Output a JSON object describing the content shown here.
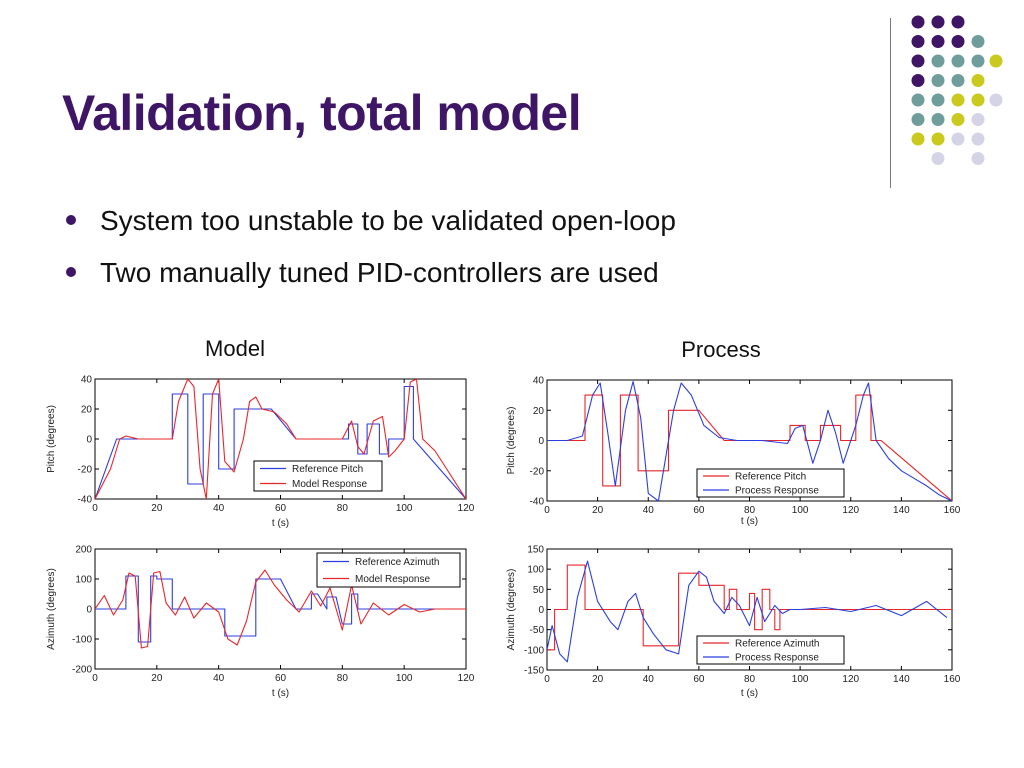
{
  "slide": {
    "title": "Validation, total model",
    "bullets": [
      "System too unstable to be validated open-loop",
      "Two manually tuned PID-controllers are used"
    ],
    "decoration_colors": [
      "#3f1566",
      "#6f9d9c",
      "#c9c91e",
      "#d4d4e6"
    ]
  },
  "panels": {
    "model_heading": "Model",
    "process_heading": "Process"
  },
  "chart_data": [
    {
      "type": "line",
      "panel": "Model",
      "xlabel": "t (s)",
      "ylabel": "Pitch (degrees)",
      "xlim": [
        0,
        120
      ],
      "ylim": [
        -40,
        40
      ],
      "xticks": [
        0,
        20,
        40,
        60,
        80,
        100,
        120
      ],
      "yticks": [
        -40,
        -20,
        0,
        20,
        40
      ],
      "legend_position": "lower-right",
      "series": [
        {
          "name": "Reference Pitch",
          "color": "#2b3fe0",
          "x": [
            0,
            7,
            25,
            25,
            30,
            30,
            35,
            35,
            40,
            40,
            45,
            45,
            50,
            50,
            57,
            65,
            82,
            82,
            85,
            85,
            88,
            88,
            92,
            92,
            95,
            95,
            100,
            100,
            103,
            103,
            120
          ],
          "y": [
            -40,
            0,
            0,
            30,
            30,
            -30,
            -30,
            30,
            30,
            -20,
            -20,
            20,
            20,
            20,
            20,
            0,
            0,
            10,
            10,
            -10,
            -10,
            10,
            10,
            -10,
            -10,
            0,
            0,
            35,
            35,
            0,
            -40
          ]
        },
        {
          "name": "Model Response",
          "color": "#e8262a",
          "x": [
            0,
            5,
            8,
            10,
            14,
            20,
            25,
            27,
            30,
            32,
            34,
            36,
            38,
            40,
            42,
            45,
            48,
            50,
            52,
            54,
            58,
            62,
            65,
            70,
            80,
            83,
            85,
            87,
            90,
            93,
            95,
            97,
            100,
            102,
            104,
            106,
            110,
            120
          ],
          "y": [
            -40,
            -20,
            0,
            2,
            0,
            0,
            0,
            25,
            40,
            35,
            -20,
            -40,
            30,
            40,
            -15,
            -22,
            0,
            25,
            28,
            20,
            18,
            10,
            0,
            0,
            0,
            12,
            -5,
            -10,
            12,
            15,
            -12,
            -8,
            0,
            38,
            40,
            0,
            -8,
            -40
          ]
        }
      ]
    },
    {
      "type": "line",
      "panel": "Model",
      "xlabel": "t (s)",
      "ylabel": "Azimuth (degrees)",
      "xlim": [
        0,
        120
      ],
      "ylim": [
        -200,
        200
      ],
      "xticks": [
        0,
        20,
        40,
        60,
        80,
        100,
        120
      ],
      "yticks": [
        -200,
        -100,
        0,
        100,
        200
      ],
      "legend_position": "upper-right",
      "series": [
        {
          "name": "Reference Azimuth",
          "color": "#2b3fe0",
          "x": [
            0,
            10,
            10,
            14,
            14,
            18,
            18,
            20,
            20,
            25,
            25,
            42,
            42,
            52,
            52,
            58,
            58,
            60,
            65,
            70,
            70,
            72,
            75,
            75,
            78,
            80,
            83,
            83,
            85,
            85,
            120
          ],
          "y": [
            0,
            0,
            110,
            110,
            -110,
            -110,
            110,
            110,
            100,
            100,
            0,
            0,
            -90,
            -90,
            100,
            100,
            100,
            100,
            0,
            0,
            50,
            50,
            0,
            40,
            40,
            -50,
            -50,
            50,
            50,
            0,
            0
          ]
        },
        {
          "name": "Model Response",
          "color": "#e8262a",
          "x": [
            0,
            3,
            6,
            9,
            11,
            13,
            15,
            17,
            19,
            21,
            23,
            26,
            29,
            32,
            36,
            40,
            43,
            46,
            49,
            52,
            55,
            58,
            62,
            66,
            70,
            73,
            76,
            80,
            83,
            86,
            90,
            95,
            100,
            105,
            110,
            120
          ],
          "y": [
            0,
            45,
            -20,
            30,
            120,
            110,
            -130,
            -125,
            120,
            125,
            20,
            -20,
            40,
            -30,
            20,
            -10,
            -100,
            -120,
            -40,
            90,
            130,
            80,
            30,
            -10,
            60,
            10,
            70,
            -70,
            80,
            -50,
            20,
            -20,
            15,
            -10,
            0,
            0
          ]
        }
      ]
    },
    {
      "type": "line",
      "panel": "Process",
      "xlabel": "t (s)",
      "ylabel": "Pitch (degrees)",
      "xlim": [
        0,
        160
      ],
      "ylim": [
        -40,
        40
      ],
      "xticks": [
        0,
        20,
        40,
        60,
        80,
        100,
        120,
        140,
        160
      ],
      "yticks": [
        -40,
        -20,
        0,
        20,
        40
      ],
      "legend_position": "lower-right",
      "series": [
        {
          "name": "Reference Pitch",
          "color": "#e8262a",
          "x": [
            0,
            15,
            15,
            22,
            22,
            29,
            29,
            36,
            36,
            48,
            48,
            60,
            70,
            96,
            96,
            102,
            102,
            108,
            108,
            116,
            116,
            122,
            122,
            128,
            128,
            132,
            160
          ],
          "y": [
            0,
            0,
            30,
            30,
            -30,
            -30,
            30,
            30,
            -20,
            -20,
            20,
            20,
            0,
            0,
            10,
            10,
            0,
            0,
            10,
            10,
            0,
            0,
            30,
            30,
            0,
            0,
            -40
          ]
        },
        {
          "name": "Process Response",
          "color": "#2b3fe0",
          "x": [
            0,
            8,
            14,
            18,
            21,
            24,
            27,
            31,
            34,
            37,
            40,
            44,
            47,
            50,
            53,
            57,
            62,
            68,
            75,
            85,
            95,
            98,
            101,
            105,
            108,
            111,
            114,
            117,
            122,
            125,
            127,
            130,
            135,
            140,
            145,
            150,
            155,
            160
          ],
          "y": [
            0,
            0,
            3,
            30,
            38,
            5,
            -30,
            20,
            39,
            15,
            -35,
            -40,
            -10,
            20,
            38,
            30,
            10,
            2,
            0,
            0,
            -2,
            8,
            10,
            -15,
            0,
            20,
            5,
            -15,
            10,
            30,
            38,
            0,
            -12,
            -20,
            -25,
            -30,
            -36,
            -40
          ]
        }
      ]
    },
    {
      "type": "line",
      "panel": "Process",
      "xlabel": "t (s)",
      "ylabel": "Azimuth (degrees)",
      "xlim": [
        0,
        160
      ],
      "ylim": [
        -150,
        150
      ],
      "xticks": [
        0,
        20,
        40,
        60,
        80,
        100,
        120,
        140,
        160
      ],
      "yticks": [
        -150,
        -100,
        -50,
        0,
        50,
        100,
        150
      ],
      "legend_position": "lower-right",
      "series": [
        {
          "name": "Reference Azimuth",
          "color": "#e8262a",
          "x": [
            0,
            3,
            3,
            8,
            8,
            15,
            15,
            38,
            38,
            52,
            52,
            60,
            60,
            70,
            70,
            72,
            72,
            75,
            75,
            80,
            80,
            82,
            82,
            85,
            85,
            88,
            88,
            90,
            90,
            92,
            92,
            160
          ],
          "y": [
            -100,
            -100,
            0,
            0,
            110,
            110,
            0,
            0,
            -90,
            -90,
            90,
            90,
            60,
            60,
            0,
            0,
            50,
            50,
            0,
            0,
            40,
            40,
            -50,
            -50,
            50,
            50,
            0,
            0,
            -50,
            -50,
            0,
            0
          ]
        },
        {
          "name": "Process Response",
          "color": "#2b3fe0",
          "x": [
            0,
            2,
            5,
            8,
            12,
            16,
            20,
            25,
            28,
            32,
            35,
            38,
            42,
            47,
            52,
            56,
            60,
            63,
            66,
            70,
            73,
            76,
            80,
            83,
            86,
            90,
            93,
            96,
            100,
            110,
            120,
            130,
            140,
            150,
            158
          ],
          "y": [
            -100,
            -40,
            -110,
            -130,
            30,
            120,
            20,
            -30,
            -50,
            20,
            40,
            -20,
            -60,
            -100,
            -110,
            60,
            95,
            80,
            20,
            -10,
            30,
            10,
            -40,
            30,
            -30,
            10,
            -10,
            0,
            0,
            5,
            -5,
            10,
            -15,
            20,
            -20
          ]
        }
      ]
    }
  ]
}
